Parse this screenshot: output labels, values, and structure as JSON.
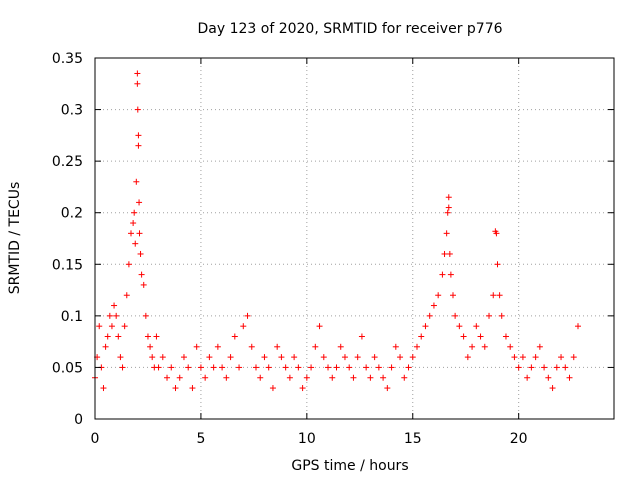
{
  "chart_data": {
    "type": "scatter",
    "title": "Day 123 of 2020, SRMTID for receiver p776",
    "xlabel": "GPS time / hours",
    "ylabel": "SRMTID / TECUs",
    "xlim": [
      0,
      24.5
    ],
    "ylim": [
      0,
      0.35
    ],
    "x_ticks": [
      0,
      5,
      10,
      15,
      20
    ],
    "x_tick_labels": [
      "0",
      "5",
      "10",
      "15",
      "20"
    ],
    "y_ticks": [
      0,
      0.05,
      0.1,
      0.15,
      0.2,
      0.25,
      0.3,
      0.35
    ],
    "y_tick_labels": [
      "0",
      "0.05",
      "0.1",
      "0.15",
      "0.2",
      "0.25",
      "0.3",
      "0.35"
    ],
    "grid": true,
    "marker": "+",
    "color": "#ff0000",
    "series": [
      {
        "name": "SRMTID p776",
        "x": [
          0.0,
          0.1,
          0.2,
          0.3,
          0.4,
          0.5,
          0.6,
          0.7,
          0.8,
          0.9,
          1.0,
          1.1,
          1.2,
          1.3,
          1.4,
          1.5,
          1.6,
          1.7,
          1.8,
          1.85,
          1.9,
          1.95,
          2.0,
          2.0,
          2.02,
          2.05,
          2.05,
          2.08,
          2.1,
          2.15,
          2.2,
          2.3,
          2.4,
          2.5,
          2.6,
          2.7,
          2.8,
          2.9,
          3.0,
          3.2,
          3.4,
          3.6,
          3.8,
          4.0,
          4.2,
          4.4,
          4.6,
          4.8,
          5.0,
          5.2,
          5.4,
          5.6,
          5.8,
          6.0,
          6.2,
          6.4,
          6.6,
          6.8,
          7.0,
          7.2,
          7.4,
          7.6,
          7.8,
          8.0,
          8.2,
          8.4,
          8.6,
          8.8,
          9.0,
          9.2,
          9.4,
          9.6,
          9.8,
          10.0,
          10.2,
          10.4,
          10.6,
          10.8,
          11.0,
          11.2,
          11.4,
          11.6,
          11.8,
          12.0,
          12.2,
          12.4,
          12.6,
          12.8,
          13.0,
          13.2,
          13.4,
          13.6,
          13.8,
          14.0,
          14.2,
          14.4,
          14.6,
          14.8,
          15.0,
          15.2,
          15.4,
          15.6,
          15.8,
          16.0,
          16.2,
          16.4,
          16.5,
          16.6,
          16.65,
          16.7,
          16.7,
          16.75,
          16.8,
          16.9,
          17.0,
          17.2,
          17.4,
          17.6,
          17.8,
          18.0,
          18.2,
          18.4,
          18.6,
          18.8,
          18.9,
          18.95,
          19.0,
          19.1,
          19.2,
          19.4,
          19.6,
          19.8,
          20.0,
          20.2,
          20.4,
          20.6,
          20.8,
          21.0,
          21.2,
          21.4,
          21.6,
          21.8,
          22.0,
          22.2,
          22.4,
          22.6,
          22.8
        ],
        "y": [
          0.04,
          0.06,
          0.09,
          0.05,
          0.03,
          0.07,
          0.08,
          0.1,
          0.09,
          0.11,
          0.1,
          0.08,
          0.06,
          0.05,
          0.09,
          0.12,
          0.15,
          0.18,
          0.19,
          0.2,
          0.17,
          0.23,
          0.335,
          0.325,
          0.3,
          0.275,
          0.265,
          0.21,
          0.18,
          0.16,
          0.14,
          0.13,
          0.1,
          0.08,
          0.07,
          0.06,
          0.05,
          0.08,
          0.05,
          0.06,
          0.04,
          0.05,
          0.03,
          0.04,
          0.06,
          0.05,
          0.03,
          0.07,
          0.05,
          0.04,
          0.06,
          0.05,
          0.07,
          0.05,
          0.04,
          0.06,
          0.08,
          0.05,
          0.09,
          0.1,
          0.07,
          0.05,
          0.04,
          0.06,
          0.05,
          0.03,
          0.07,
          0.06,
          0.05,
          0.04,
          0.06,
          0.05,
          0.03,
          0.04,
          0.05,
          0.07,
          0.09,
          0.06,
          0.05,
          0.04,
          0.05,
          0.07,
          0.06,
          0.05,
          0.04,
          0.06,
          0.08,
          0.05,
          0.04,
          0.06,
          0.05,
          0.04,
          0.03,
          0.05,
          0.07,
          0.06,
          0.04,
          0.05,
          0.06,
          0.07,
          0.08,
          0.09,
          0.1,
          0.11,
          0.12,
          0.14,
          0.16,
          0.18,
          0.2,
          0.215,
          0.205,
          0.16,
          0.14,
          0.12,
          0.1,
          0.09,
          0.08,
          0.06,
          0.07,
          0.09,
          0.08,
          0.07,
          0.1,
          0.12,
          0.182,
          0.18,
          0.15,
          0.12,
          0.1,
          0.08,
          0.07,
          0.06,
          0.05,
          0.06,
          0.04,
          0.05,
          0.06,
          0.07,
          0.05,
          0.04,
          0.03,
          0.05,
          0.06,
          0.05,
          0.04,
          0.06,
          0.09
        ]
      }
    ]
  }
}
